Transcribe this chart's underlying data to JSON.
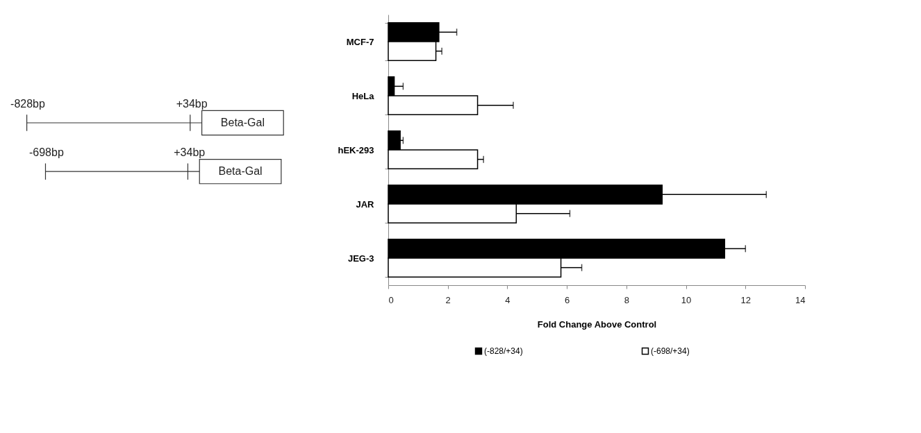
{
  "chart_data": [
    {
      "type": "other",
      "annotations": [
        "-828bp",
        "+34bp",
        "Beta-Gal",
        "-698bp",
        "+34bp",
        "Beta-Gal"
      ]
    },
    {
      "type": "bar",
      "orientation": "horizontal",
      "xlabel": "Fold Change Above Control",
      "categories": [
        "MCF-7",
        "HeLa",
        "hEK-293",
        "JAR",
        "JEG-3"
      ],
      "series": [
        {
          "name": "(-828/+34)",
          "color": "#000000",
          "values": [
            1.7,
            0.2,
            0.4,
            9.2,
            11.3
          ],
          "errors": [
            [
              1.7,
              2.3
            ],
            [
              0.2,
              0.5
            ],
            [
              0.4,
              0.5
            ],
            [
              9.2,
              12.7
            ],
            [
              11.3,
              12.0
            ]
          ]
        },
        {
          "name": "(-698/+34)",
          "color": "#ffffff",
          "values": [
            1.6,
            3.0,
            3.0,
            4.3,
            5.8
          ],
          "errors": [
            [
              1.6,
              1.8
            ],
            [
              3.0,
              4.2
            ],
            [
              3.0,
              3.2
            ],
            [
              4.3,
              6.1
            ],
            [
              5.8,
              6.5
            ]
          ]
        }
      ],
      "xlim": [
        0,
        14
      ],
      "xticks": [
        0,
        2,
        4,
        6,
        8,
        10,
        12,
        14
      ],
      "grid": false,
      "legend": "bottom"
    }
  ]
}
